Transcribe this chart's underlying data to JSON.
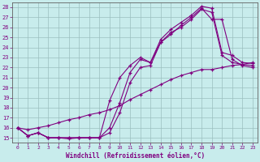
{
  "xlabel": "Windchill (Refroidissement éolien,°C)",
  "bg_color": "#c8ecec",
  "line_color": "#800080",
  "grid_color": "#aacccc",
  "xlim": [
    -0.5,
    23.5
  ],
  "ylim": [
    14.5,
    28.5
  ],
  "xticks": [
    0,
    1,
    2,
    3,
    4,
    5,
    6,
    7,
    8,
    9,
    10,
    11,
    12,
    13,
    14,
    15,
    16,
    17,
    18,
    19,
    20,
    21,
    22,
    23
  ],
  "yticks": [
    15,
    16,
    17,
    18,
    19,
    20,
    21,
    22,
    23,
    24,
    25,
    26,
    27,
    28
  ],
  "lines": [
    {
      "x": [
        0,
        1,
        2,
        3,
        4,
        5,
        6,
        7,
        8,
        9,
        10,
        11,
        12,
        13,
        14,
        15,
        16,
        17,
        18,
        19,
        20,
        21,
        22,
        23
      ],
      "y": [
        16,
        15.2,
        15.5,
        15.0,
        15.0,
        15.0,
        15.0,
        15.0,
        15.0,
        16.0,
        18.5,
        21.5,
        22.8,
        22.5,
        24.8,
        25.8,
        26.5,
        27.2,
        28.1,
        27.9,
        23.5,
        23.2,
        22.5,
        22.4
      ]
    },
    {
      "x": [
        0,
        1,
        2,
        3,
        4,
        5,
        6,
        7,
        8,
        9,
        10,
        11,
        12,
        13,
        14,
        15,
        16,
        17,
        18,
        19,
        20,
        21,
        22,
        23
      ],
      "y": [
        16,
        15.2,
        15.5,
        15.0,
        15.0,
        15.0,
        15.0,
        15.0,
        15.0,
        15.5,
        17.5,
        20.5,
        22.0,
        22.2,
        24.5,
        25.3,
        26.2,
        27.0,
        27.9,
        26.8,
        26.8,
        22.8,
        22.2,
        22.0
      ]
    },
    {
      "x": [
        0,
        1,
        2,
        3,
        4,
        5,
        6,
        7,
        8,
        9,
        10,
        11,
        12,
        13,
        14,
        15,
        16,
        17,
        18,
        19,
        20,
        21,
        22,
        23
      ],
      "y": [
        16,
        15.8,
        16.0,
        16.2,
        16.5,
        16.8,
        17.0,
        17.3,
        17.5,
        17.8,
        18.2,
        18.8,
        19.3,
        19.8,
        20.3,
        20.8,
        21.2,
        21.5,
        21.8,
        21.8,
        22.0,
        22.2,
        22.3,
        22.5
      ]
    },
    {
      "x": [
        0,
        1,
        2,
        3,
        4,
        5,
        6,
        7,
        8,
        9,
        10,
        11,
        12,
        13,
        14,
        15,
        16,
        17,
        18,
        19,
        20,
        21,
        22,
        23
      ],
      "y": [
        16,
        15.2,
        15.5,
        15.0,
        15.0,
        14.9,
        15.0,
        15.0,
        15.0,
        18.7,
        21.0,
        22.2,
        23.0,
        22.5,
        24.5,
        25.5,
        26.0,
        26.8,
        27.8,
        27.5,
        23.2,
        22.5,
        22.3,
        22.2
      ]
    }
  ]
}
